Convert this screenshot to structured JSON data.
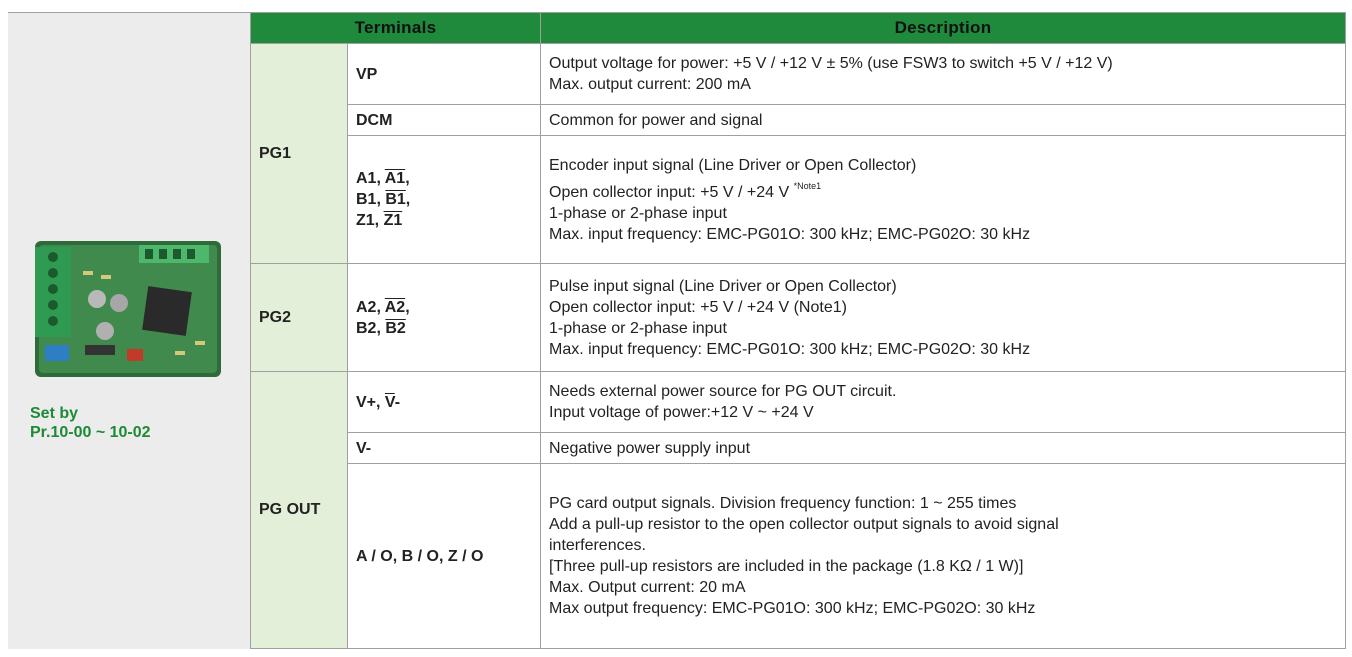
{
  "side": {
    "caption": [
      "Set by",
      "Pr.10-00 ~ 10-02"
    ]
  },
  "table": {
    "header": [
      "Terminals",
      "Description"
    ],
    "groups": [
      {
        "name": "PG1",
        "rows": [
          {
            "terminal": [
              "VP"
            ],
            "description": [
              "Output voltage for power: +5 V / +12 V ± 5% (use FSW3 to switch +5 V / +12 V)",
              "Max. output current: 200 mA"
            ]
          },
          {
            "terminal": [
              "DCM"
            ],
            "description": [
              "Common for power and signal"
            ]
          },
          {
            "terminal": [
              [
                "A1, ",
                {
                  "text": "A1",
                  "style": "overline"
                },
                ","
              ],
              [
                "B1, ",
                {
                  "text": "B1",
                  "style": "overline"
                },
                ","
              ],
              [
                "Z1, ",
                {
                  "text": "Z1",
                  "style": "overline"
                }
              ]
            ],
            "description": [
              "Encoder input signal (Line Driver or Open Collector)",
              [
                "Open collector input: +5 V / +24 V ",
                {
                  "text": "*Note1",
                  "style": "sup"
                }
              ],
              "1-phase or 2-phase input",
              "Max. input frequency: EMC-PG01O: 300 kHz; EMC-PG02O: 30 kHz"
            ]
          }
        ]
      },
      {
        "name": "PG2",
        "rows": [
          {
            "terminal": [
              [
                "A2, ",
                {
                  "text": "A2",
                  "style": "overline"
                },
                ","
              ],
              [
                "B2, ",
                {
                  "text": "B2",
                  "style": "overline"
                }
              ]
            ],
            "description": [
              "Pulse input signal (Line Driver or Open Collector)",
              "Open collector input: +5 V / +24 V (Note1)",
              "1-phase or 2-phase input",
              "Max. input frequency: EMC-PG01O: 300 kHz; EMC-PG02O: 30 kHz"
            ]
          }
        ]
      },
      {
        "name": "PG OUT",
        "rows": [
          {
            "terminal": [
              [
                "V+, ",
                {
                  "text": "V",
                  "style": "overline"
                },
                "-"
              ]
            ],
            "description": [
              "Needs external power source for PG OUT circuit.",
              "Input voltage of power:+12 V ~ +24 V"
            ]
          },
          {
            "terminal": [
              "V-"
            ],
            "description": [
              "Negative power supply input"
            ]
          },
          {
            "terminal": [
              "A / O, B / O, Z / O"
            ],
            "description": [
              "PG card output signals. Division frequency function: 1 ~ 255 times",
              "Add a pull-up resistor to the open collector output signals to avoid signal",
              "interferences.",
              "[Three pull-up resistors are included in the package (1.8 KΩ / 1 W)]",
              "Max. Output current: 20 mA",
              "Max output frequency: EMC-PG01O: 300 kHz; EMC-PG02O: 30 kHz"
            ]
          }
        ]
      }
    ]
  }
}
